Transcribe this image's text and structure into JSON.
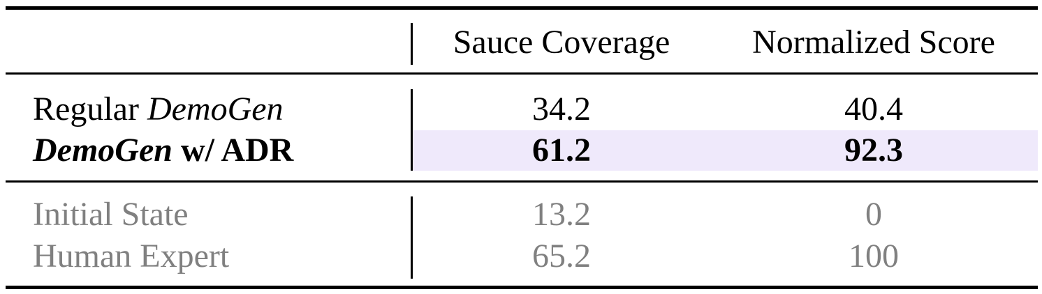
{
  "table": {
    "headers": [
      "",
      "Sauce Coverage",
      "Normalized Score"
    ],
    "rows": [
      {
        "label_prefix": "Regular ",
        "label_italic": "DemoGen",
        "label_suffix": "",
        "values": [
          "34.2",
          "40.4"
        ]
      },
      {
        "label_prefix": "",
        "label_italic": "DemoGen",
        "label_suffix": " w/ ADR",
        "values": [
          "61.2",
          "92.3"
        ]
      },
      {
        "label": "Initial State",
        "values": [
          "13.2",
          "0"
        ]
      },
      {
        "label": "Human Expert",
        "values": [
          "65.2",
          "100"
        ]
      }
    ]
  },
  "colors": {
    "highlight": "#efe9fb",
    "reference_text": "#808080"
  }
}
